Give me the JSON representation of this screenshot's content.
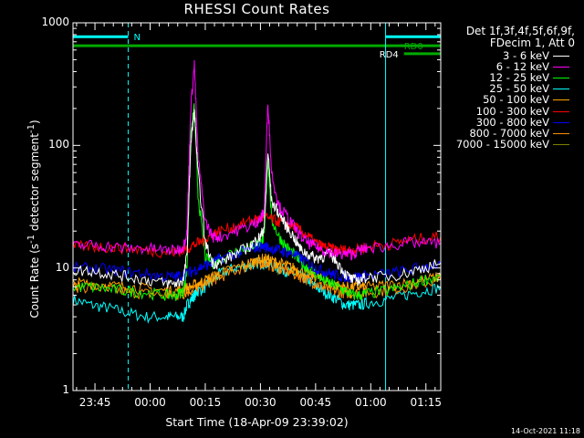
{
  "chart_data": {
    "type": "line",
    "title": "RHESSI Count Rates",
    "xlabel": "Start Time (18-Apr-09 23:39:02)",
    "ylabel": "Count Rate (s⁻¹ detector segment⁻¹)",
    "yscale": "log",
    "ylim": [
      1,
      1000
    ],
    "xlim_minutes": [
      0,
      100
    ],
    "x_unit": "minutes after 23:39:02",
    "y_ticks": [
      "1",
      "10",
      "100",
      "1000"
    ],
    "x_ticks": [
      "23:45",
      "00:00",
      "00:15",
      "00:30",
      "00:45",
      "01:00",
      "01:15"
    ],
    "legend_header": [
      "Det 1f,3f,4f,5f,6f,9f,",
      "FDecim 1, Att 0"
    ],
    "series": [
      {
        "name": "3 - 6 keV",
        "color": "#ffffff",
        "x": [
          0,
          5,
          10,
          15,
          20,
          25,
          28,
          30,
          31,
          32,
          33,
          34,
          36,
          38,
          40,
          44,
          48,
          50,
          51,
          52,
          53,
          54,
          56,
          58,
          60,
          62,
          64,
          66,
          68,
          70,
          72,
          74,
          76,
          78,
          80,
          85,
          90,
          95,
          100
        ],
        "y": [
          9.5,
          9.5,
          9,
          8.5,
          8,
          7.5,
          7.5,
          8,
          13,
          100,
          190,
          60,
          16,
          11,
          11,
          13,
          15,
          17,
          18,
          22,
          90,
          35,
          28,
          22,
          18,
          14,
          13,
          12,
          12.5,
          13,
          11,
          9,
          8,
          8,
          8.5,
          8.5,
          9,
          10,
          11
        ]
      },
      {
        "name": "6 - 12 keV",
        "color": "#ff00ff",
        "x": [
          0,
          5,
          10,
          15,
          20,
          25,
          28,
          30,
          31,
          32,
          33,
          34,
          36,
          38,
          40,
          44,
          48,
          50,
          51,
          52,
          53,
          54,
          56,
          58,
          60,
          62,
          64,
          66,
          68,
          70,
          72,
          74,
          76,
          78,
          80,
          85,
          90,
          95,
          100
        ],
        "y": [
          15,
          15.5,
          15,
          14.5,
          14.5,
          14,
          14,
          15,
          20,
          200,
          460,
          80,
          24,
          18,
          18,
          20,
          22,
          24,
          25,
          30,
          230,
          60,
          32,
          27,
          22,
          18,
          16,
          15,
          14,
          13.5,
          13,
          13,
          13,
          14,
          14.5,
          15,
          16,
          16,
          16
        ]
      },
      {
        "name": "12 - 25 keV",
        "color": "#00ff00",
        "x": [
          0,
          5,
          10,
          15,
          20,
          25,
          28,
          30,
          31,
          32,
          33,
          34,
          36,
          38,
          40,
          44,
          48,
          50,
          51,
          52,
          53,
          54,
          56,
          58,
          60,
          62,
          64,
          66,
          68,
          70,
          72,
          74,
          76,
          78,
          80,
          85,
          90,
          95,
          100
        ],
        "y": [
          7,
          7,
          6.7,
          6.5,
          6.3,
          6,
          6,
          6.5,
          10,
          120,
          210,
          40,
          12,
          11,
          12,
          14,
          15,
          16,
          16,
          18,
          80,
          25,
          18,
          15,
          13,
          11,
          10,
          9,
          8,
          7.5,
          7,
          6.5,
          6,
          6,
          6.2,
          6.5,
          7,
          8,
          8.5
        ]
      },
      {
        "name": "25 - 50 keV",
        "color": "#00ffff",
        "x": [
          0,
          5,
          10,
          15,
          20,
          25,
          28,
          30,
          31,
          32,
          33,
          34,
          36,
          38,
          40,
          44,
          48,
          50,
          52,
          54,
          56,
          58,
          60,
          62,
          64,
          66,
          68,
          70,
          72,
          74,
          76,
          78,
          80,
          85,
          90,
          95,
          100
        ],
        "y": [
          5.5,
          5,
          4.7,
          4.3,
          4,
          4,
          4,
          4,
          5,
          5.5,
          6,
          6.5,
          7,
          8,
          9,
          10,
          10.5,
          11,
          11,
          10.5,
          10,
          9.5,
          9,
          8.5,
          8,
          7,
          6.5,
          6,
          5.5,
          5,
          5,
          5,
          5.2,
          5.5,
          6,
          6.5,
          7
        ]
      },
      {
        "name": "50 - 100 keV",
        "color": "#ffa500",
        "x": [
          0,
          5,
          10,
          15,
          20,
          25,
          28,
          30,
          32,
          34,
          36,
          38,
          40,
          44,
          48,
          50,
          52,
          54,
          56,
          58,
          60,
          62,
          64,
          66,
          68,
          70,
          72,
          74,
          76,
          78,
          80,
          85,
          90,
          95,
          100
        ],
        "y": [
          7.5,
          7.5,
          7.2,
          7,
          6.8,
          6.5,
          6.5,
          6.8,
          7,
          7.5,
          8,
          8.5,
          9,
          10,
          11,
          11.5,
          12,
          11.5,
          11,
          10.5,
          10,
          9.5,
          9,
          8.5,
          8,
          7.5,
          7.2,
          7,
          7,
          7,
          7,
          7.2,
          7.5,
          8,
          8.5
        ]
      },
      {
        "name": "100 - 300 keV",
        "color": "#ff0000",
        "x": [
          0,
          5,
          10,
          15,
          20,
          25,
          28,
          30,
          32,
          34,
          36,
          38,
          40,
          44,
          48,
          50,
          52,
          54,
          56,
          58,
          60,
          62,
          64,
          66,
          68,
          70,
          72,
          74,
          76,
          78,
          80,
          85,
          90,
          95,
          100
        ],
        "y": [
          15,
          15,
          14.8,
          14.5,
          14,
          13.5,
          13.5,
          14,
          15,
          16,
          17,
          19,
          20,
          22,
          24,
          25,
          26,
          25,
          24,
          23,
          22,
          20,
          18,
          16,
          15,
          14.5,
          14,
          14,
          14,
          14.5,
          15,
          15.5,
          16.5,
          17.5,
          18
        ]
      },
      {
        "name": "300 - 800 keV",
        "color": "#0000ff",
        "x": [
          0,
          5,
          10,
          15,
          20,
          25,
          28,
          30,
          32,
          34,
          36,
          38,
          40,
          44,
          48,
          50,
          52,
          54,
          56,
          58,
          60,
          62,
          64,
          66,
          68,
          70,
          72,
          74,
          76,
          78,
          80,
          85,
          90,
          95,
          100
        ],
        "y": [
          10,
          10,
          9.7,
          9.3,
          9,
          8.5,
          8.5,
          8.8,
          9.3,
          10,
          10.5,
          11,
          12,
          13,
          14,
          15,
          15,
          14.5,
          14,
          13.5,
          13,
          12,
          11,
          10,
          9.5,
          9,
          8.7,
          8.5,
          8.5,
          8.5,
          8.7,
          9,
          9.5,
          10.2,
          10.8
        ]
      },
      {
        "name": "800 - 7000 keV",
        "color": "#ff8c00",
        "x": [
          0,
          5,
          10,
          15,
          20,
          25,
          28,
          30,
          32,
          34,
          36,
          38,
          40,
          44,
          48,
          50,
          52,
          54,
          56,
          58,
          60,
          62,
          64,
          66,
          68,
          70,
          72,
          74,
          76,
          78,
          80,
          85,
          90,
          95,
          100
        ],
        "y": [
          7,
          7,
          6.7,
          6.4,
          6.2,
          6,
          6,
          6.2,
          6.6,
          7,
          7.5,
          8,
          8.5,
          9.5,
          10.5,
          11,
          11,
          10.5,
          10,
          9.5,
          9,
          8.5,
          8,
          7.5,
          7,
          6.6,
          6.4,
          6.3,
          6.2,
          6.2,
          6.3,
          6.6,
          7,
          7.5,
          8
        ]
      },
      {
        "name": "7000 - 15000 keV",
        "color": "#808000",
        "x": [],
        "y": []
      }
    ],
    "vertical_lines": [
      {
        "x": 0,
        "color": "#00ffff",
        "style": "solid"
      },
      {
        "x": 15,
        "color": "#00ffff",
        "style": "dashed"
      },
      {
        "x": 85,
        "color": "#00ffff",
        "style": "solid"
      },
      {
        "x": 100,
        "color": "#00ffff",
        "style": "dashed"
      }
    ],
    "flag_bars": [
      {
        "label": "N",
        "color": "#00ffff",
        "segments": [
          [
            0,
            15
          ],
          [
            85,
            100
          ]
        ],
        "y": 770
      },
      {
        "label": "RD0",
        "color": "#00aa00",
        "segments": [
          [
            0,
            100
          ]
        ],
        "y": 650
      },
      {
        "label": "RD4",
        "color": "#00aa00",
        "segments": [
          [
            90,
            100
          ]
        ],
        "y": 560
      }
    ]
  },
  "timestamp": "14-Oct-2021 11:18"
}
